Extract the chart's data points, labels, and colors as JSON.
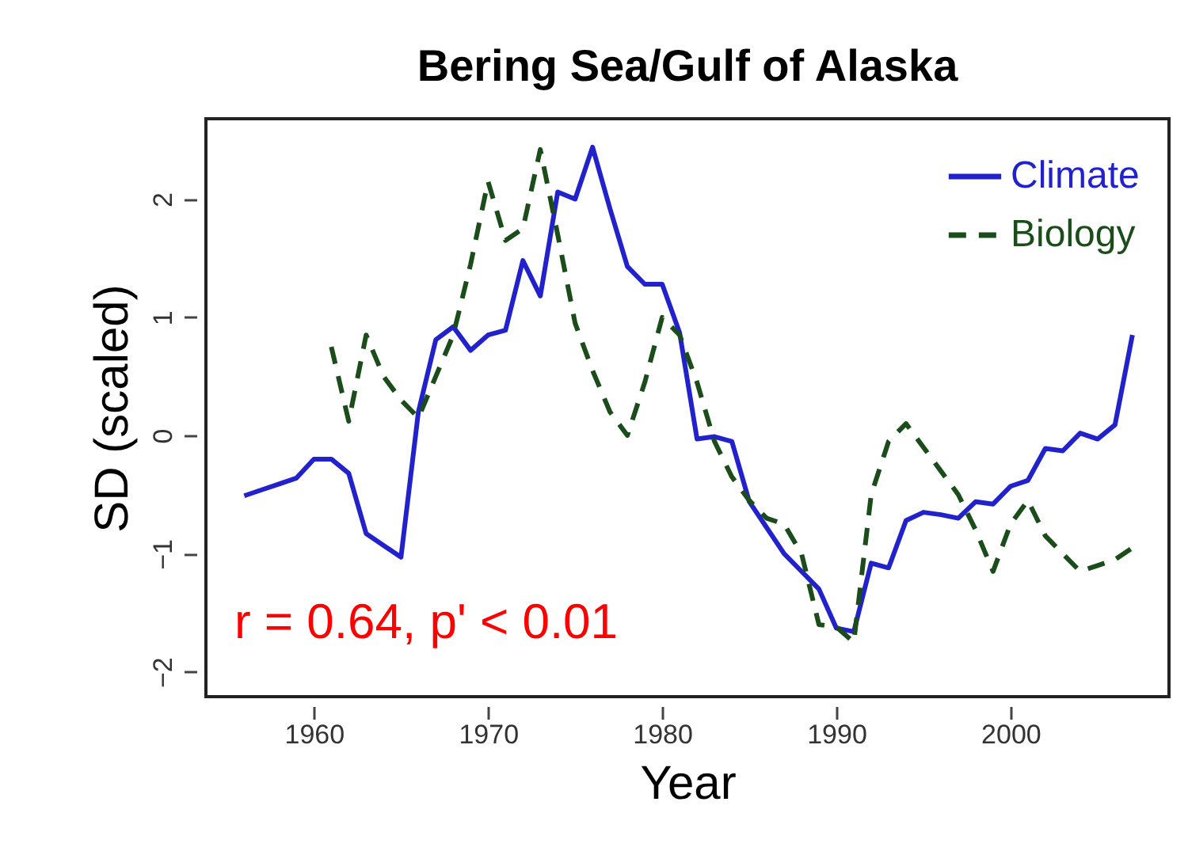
{
  "chart_data": {
    "type": "line",
    "title": "Bering Sea/Gulf of Alaska",
    "xlabel": "Year",
    "ylabel": "SD (scaled)",
    "xlim": [
      1953.8,
      2009.1
    ],
    "xticks": [
      1960,
      1970,
      1980,
      1990,
      2000
    ],
    "ylim": [
      -2.21,
      2.68
    ],
    "yticks": [
      -2,
      -1,
      0,
      1,
      2
    ],
    "grid": false,
    "legend": "top right",
    "annotations": [
      "r = 0.64, p' < 0.01"
    ],
    "series": [
      {
        "name": "Climate",
        "color": "#2222cc",
        "line_style": "solid",
        "x": [
          1956,
          1957,
          1958,
          1959,
          1960,
          1961,
          1962,
          1963,
          1964,
          1965,
          1966,
          1967,
          1968,
          1969,
          1970,
          1971,
          1972,
          1973,
          1974,
          1975,
          1976,
          1977,
          1978,
          1979,
          1980,
          1981,
          1982,
          1983,
          1984,
          1985,
          1986,
          1987,
          1988,
          1989,
          1990,
          1991,
          1992,
          1993,
          1994,
          1995,
          1996,
          1997,
          1998,
          1999,
          2000,
          2001,
          2002,
          2003,
          2004,
          2005,
          2006,
          2007
        ],
        "values": [
          -0.51,
          -0.46,
          -0.41,
          -0.36,
          -0.2,
          -0.2,
          -0.32,
          -0.83,
          -0.93,
          -1.03,
          0.2,
          0.81,
          0.92,
          0.72,
          0.85,
          0.89,
          1.48,
          1.18,
          2.06,
          2.0,
          2.44,
          1.92,
          1.43,
          1.28,
          1.28,
          0.87,
          -0.03,
          -0.01,
          -0.05,
          -0.56,
          -0.78,
          -1.0,
          -1.15,
          -1.3,
          -1.63,
          -1.66,
          -1.08,
          -1.12,
          -0.72,
          -0.65,
          -0.67,
          -0.7,
          -0.56,
          -0.58,
          -0.43,
          -0.38,
          -0.11,
          -0.13,
          0.02,
          -0.03,
          0.09,
          0.85
        ]
      },
      {
        "name": "Biology",
        "color": "#1a4d1a",
        "line_style": "dashed",
        "x": [
          1961,
          1962,
          1963,
          1964,
          1965,
          1966,
          1967,
          1968,
          1969,
          1970,
          1971,
          1972,
          1973,
          1974,
          1975,
          1976,
          1977,
          1978,
          1979,
          1980,
          1981,
          1982,
          1983,
          1984,
          1985,
          1986,
          1987,
          1988,
          1989,
          1990,
          1991,
          1992,
          1993,
          1994,
          1995,
          1996,
          1997,
          1998,
          1999,
          2000,
          2001,
          2002,
          2003,
          2004,
          2005,
          2006,
          2007
        ],
        "values": [
          0.75,
          0.12,
          0.85,
          0.5,
          0.3,
          0.15,
          0.5,
          0.85,
          1.45,
          2.15,
          1.65,
          1.75,
          2.42,
          1.7,
          0.95,
          0.55,
          0.2,
          0.0,
          0.45,
          1.0,
          0.85,
          0.45,
          -0.05,
          -0.35,
          -0.55,
          -0.7,
          -0.75,
          -1.0,
          -1.6,
          -1.62,
          -1.75,
          -0.5,
          -0.05,
          0.1,
          -0.1,
          -0.3,
          -0.5,
          -0.8,
          -1.15,
          -0.75,
          -0.55,
          -0.85,
          -1.0,
          -1.15,
          -1.1,
          -1.05,
          -0.95
        ]
      }
    ]
  }
}
